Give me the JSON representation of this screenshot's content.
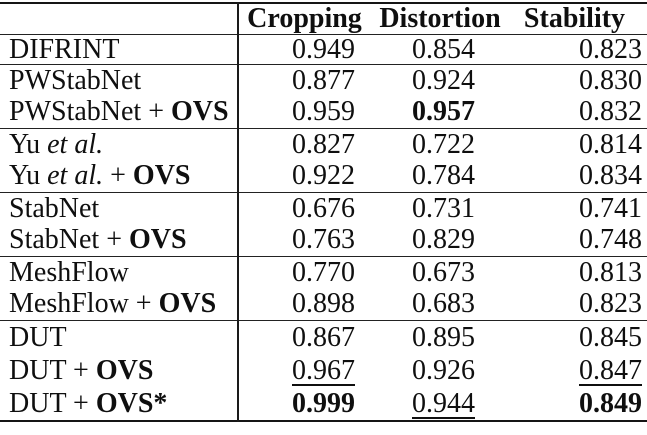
{
  "chart_data": {
    "type": "table",
    "columns": [
      "",
      "Cropping",
      "Distortion",
      "Stability"
    ],
    "styles_legend": {
      "b": "bold",
      "i": "italic",
      "u": "underline",
      "": "plain"
    },
    "rows": [
      {
        "group": 0,
        "label": [
          [
            "DIFRINT",
            ""
          ]
        ],
        "values": [
          [
            "0.949",
            ""
          ],
          [
            "0.854",
            ""
          ],
          [
            "0.823",
            ""
          ]
        ]
      },
      {
        "group": 1,
        "label": [
          [
            "PWStabNet",
            ""
          ]
        ],
        "values": [
          [
            "0.877",
            ""
          ],
          [
            "0.924",
            ""
          ],
          [
            "0.830",
            ""
          ]
        ]
      },
      {
        "group": 1,
        "label": [
          [
            "PWStabNet + ",
            ""
          ],
          [
            "OVS",
            "b"
          ]
        ],
        "values": [
          [
            "0.959",
            ""
          ],
          [
            "0.957",
            "b"
          ],
          [
            "0.832",
            ""
          ]
        ]
      },
      {
        "group": 2,
        "label": [
          [
            "Yu ",
            ""
          ],
          [
            "et al.",
            "i"
          ]
        ],
        "values": [
          [
            "0.827",
            ""
          ],
          [
            "0.722",
            ""
          ],
          [
            "0.814",
            ""
          ]
        ]
      },
      {
        "group": 2,
        "label": [
          [
            "Yu ",
            ""
          ],
          [
            "et al.",
            "i"
          ],
          [
            " + ",
            ""
          ],
          [
            "OVS",
            "b"
          ]
        ],
        "values": [
          [
            "0.922",
            ""
          ],
          [
            "0.784",
            ""
          ],
          [
            "0.834",
            ""
          ]
        ]
      },
      {
        "group": 3,
        "label": [
          [
            "StabNet",
            ""
          ]
        ],
        "values": [
          [
            "0.676",
            ""
          ],
          [
            "0.731",
            ""
          ],
          [
            "0.741",
            ""
          ]
        ]
      },
      {
        "group": 3,
        "label": [
          [
            "StabNet + ",
            ""
          ],
          [
            "OVS",
            "b"
          ]
        ],
        "values": [
          [
            "0.763",
            ""
          ],
          [
            "0.829",
            ""
          ],
          [
            "0.748",
            ""
          ]
        ]
      },
      {
        "group": 4,
        "label": [
          [
            "MeshFlow",
            ""
          ]
        ],
        "values": [
          [
            "0.770",
            ""
          ],
          [
            "0.673",
            ""
          ],
          [
            "0.813",
            ""
          ]
        ]
      },
      {
        "group": 4,
        "label": [
          [
            "MeshFlow + ",
            ""
          ],
          [
            "OVS",
            "b"
          ]
        ],
        "values": [
          [
            "0.898",
            ""
          ],
          [
            "0.683",
            ""
          ],
          [
            "0.823",
            ""
          ]
        ]
      },
      {
        "group": 5,
        "label": [
          [
            "DUT",
            ""
          ]
        ],
        "values": [
          [
            "0.867",
            ""
          ],
          [
            "0.895",
            ""
          ],
          [
            "0.845",
            ""
          ]
        ]
      },
      {
        "group": 5,
        "label": [
          [
            "DUT + ",
            ""
          ],
          [
            "OVS",
            "b"
          ]
        ],
        "values": [
          [
            "0.967",
            "u"
          ],
          [
            "0.926",
            ""
          ],
          [
            "0.847",
            "u"
          ]
        ]
      },
      {
        "group": 5,
        "label": [
          [
            "DUT + ",
            ""
          ],
          [
            "OVS*",
            "b"
          ]
        ],
        "values": [
          [
            "0.999",
            "b"
          ],
          [
            "0.944",
            "u"
          ],
          [
            "0.849",
            "b"
          ]
        ]
      }
    ],
    "colors": {
      "text": "#0f0f0f",
      "rule": "#1a1a1a",
      "background": "#ffffff"
    }
  }
}
